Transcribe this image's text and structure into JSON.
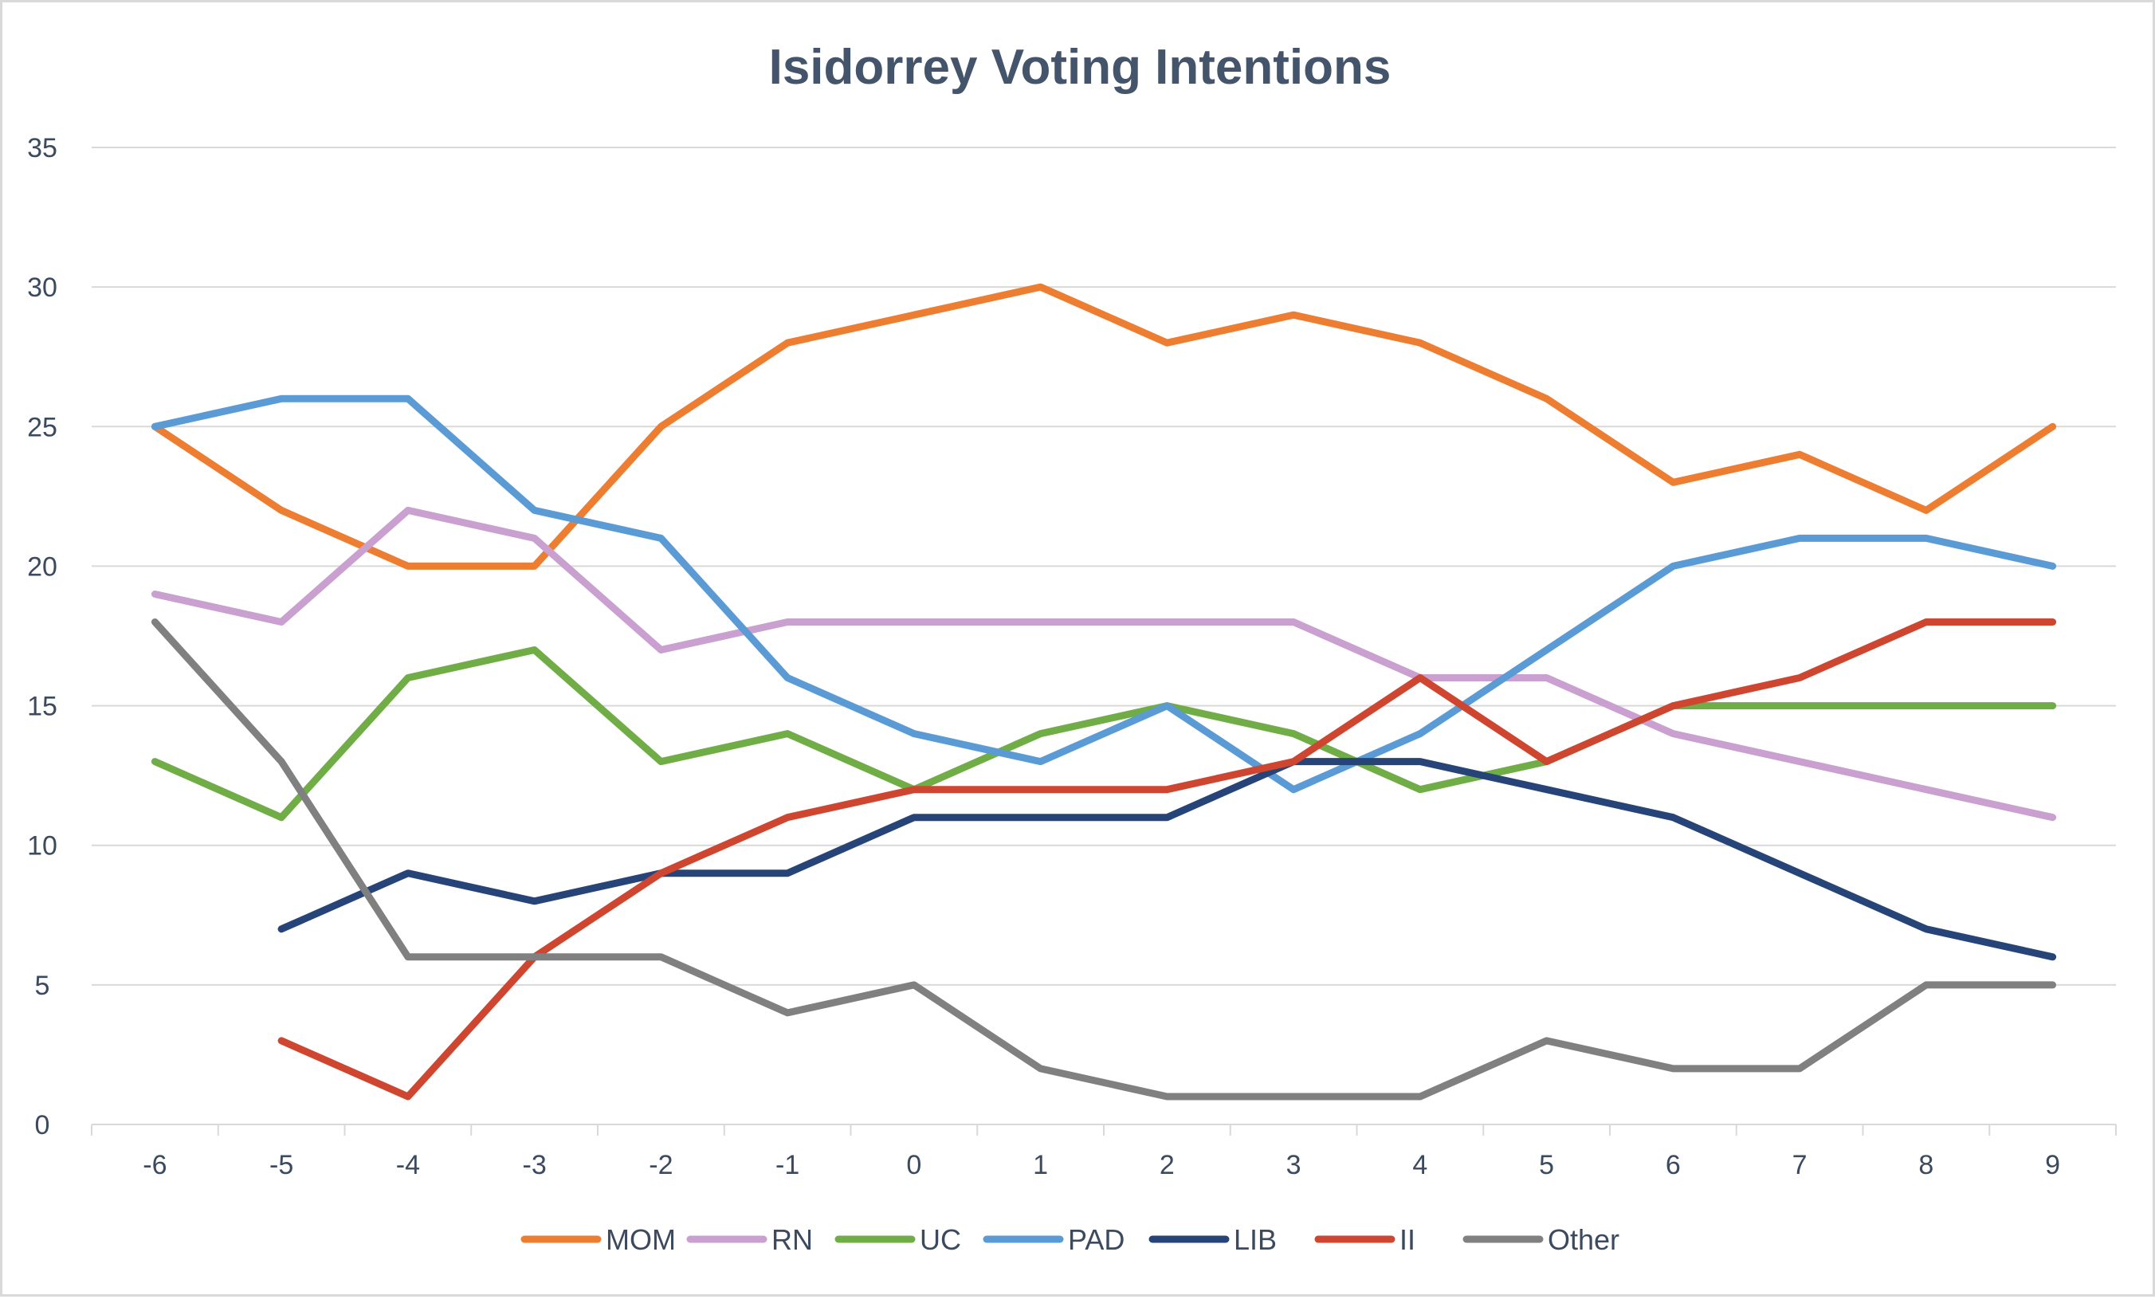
{
  "chart_data": {
    "type": "line",
    "title": "Isidorrey Voting Intentions",
    "xlabel": "",
    "ylabel": "",
    "x": [
      -6,
      -5,
      -4,
      -3,
      -2,
      -1,
      0,
      1,
      2,
      3,
      4,
      5,
      6,
      7,
      8,
      9
    ],
    "ylim": [
      0,
      35
    ],
    "yticks": [
      0,
      5,
      10,
      15,
      20,
      25,
      30,
      35
    ],
    "grid": true,
    "legend_position": "bottom",
    "series": [
      {
        "name": "MOM",
        "color": "#ed7d31",
        "values": [
          25,
          22,
          20,
          20,
          25,
          28,
          29,
          30,
          28,
          29,
          28,
          26,
          23,
          24,
          22,
          25
        ]
      },
      {
        "name": "RN",
        "color": "#c9a0d0",
        "values": [
          19,
          18,
          22,
          21,
          17,
          18,
          18,
          18,
          18,
          18,
          16,
          16,
          14,
          13,
          12,
          11
        ]
      },
      {
        "name": "UC",
        "color": "#70ad47",
        "values": [
          13,
          11,
          16,
          17,
          13,
          14,
          12,
          14,
          15,
          14,
          12,
          13,
          15,
          15,
          15,
          15
        ]
      },
      {
        "name": "PAD",
        "color": "#5b9bd5",
        "values": [
          25,
          26,
          26,
          22,
          21,
          16,
          14,
          13,
          15,
          12,
          14,
          17,
          20,
          21,
          21,
          20
        ]
      },
      {
        "name": "LIB",
        "color": "#264478",
        "values": [
          null,
          7,
          9,
          8,
          9,
          9,
          11,
          11,
          11,
          13,
          13,
          12,
          11,
          9,
          7,
          6
        ]
      },
      {
        "name": "II",
        "color": "#cf4630",
        "values": [
          null,
          3,
          1,
          6,
          9,
          11,
          12,
          12,
          12,
          13,
          16,
          13,
          15,
          16,
          18,
          18
        ]
      },
      {
        "name": "Other",
        "color": "#808080",
        "values": [
          18,
          13,
          6,
          6,
          6,
          4,
          5,
          2,
          1,
          1,
          1,
          3,
          2,
          2,
          5,
          5
        ]
      }
    ]
  }
}
